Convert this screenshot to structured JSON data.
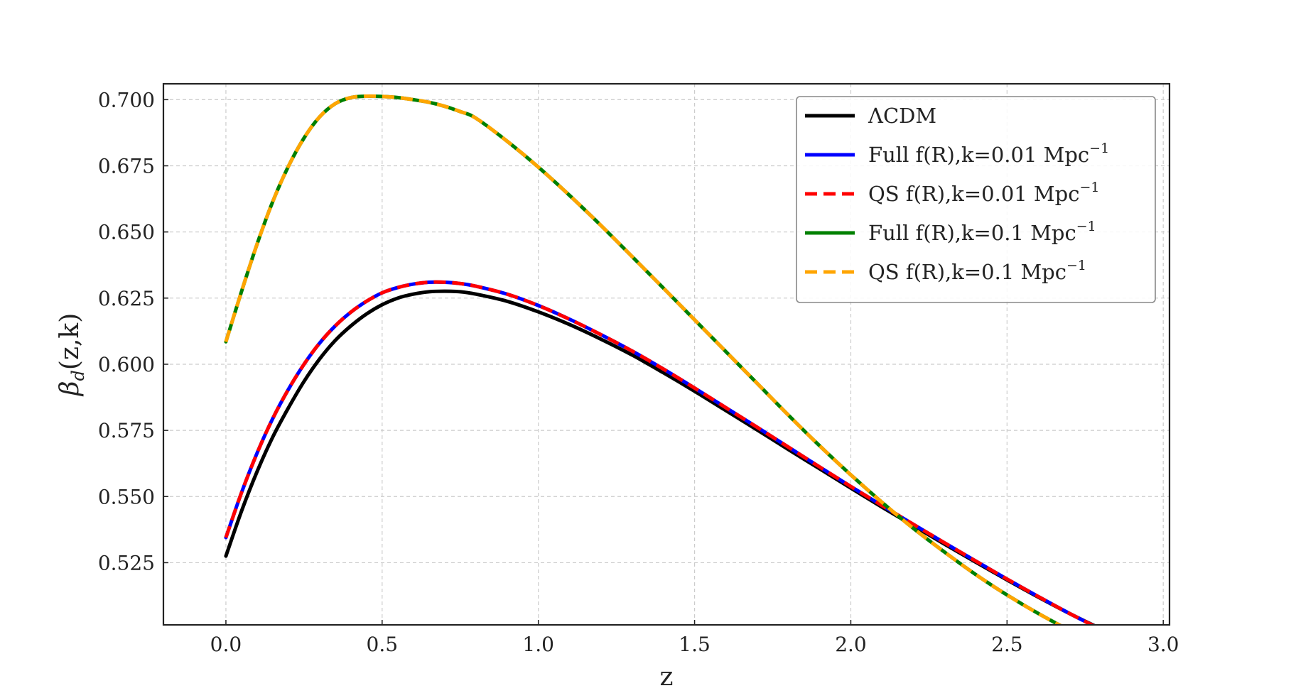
{
  "chart_data": {
    "type": "line",
    "xlabel": "z",
    "ylabel_symbol": "β",
    "ylabel_subscript": "d",
    "ylabel_rest": "(z,k)",
    "xlim": [
      -0.2,
      3.02
    ],
    "ylim": [
      0.5015,
      0.706
    ],
    "x_ticks": [
      0.0,
      0.5,
      1.0,
      1.5,
      2.0,
      2.5,
      3.0
    ],
    "x_tick_labels": [
      "0.0",
      "0.5",
      "1.0",
      "1.5",
      "2.0",
      "2.5",
      "3.0"
    ],
    "y_ticks": [
      0.525,
      0.55,
      0.575,
      0.6,
      0.625,
      0.65,
      0.675,
      0.7
    ],
    "y_tick_labels": [
      "0.525",
      "0.550",
      "0.575",
      "0.600",
      "0.625",
      "0.650",
      "0.675",
      "0.700"
    ],
    "grid": true,
    "legend_position": "top-right",
    "series": [
      {
        "name": "ΛCDM",
        "legend_base": "ΛCDM",
        "legend_sup": "",
        "color": "#000000",
        "dash": "solid",
        "x": [
          0.0,
          0.05,
          0.1,
          0.15,
          0.2,
          0.25,
          0.3,
          0.35,
          0.4,
          0.45,
          0.5,
          0.55,
          0.6,
          0.65,
          0.7,
          0.75,
          0.8,
          0.9,
          1.0,
          1.1,
          1.2,
          1.3,
          1.4,
          1.5,
          1.6,
          1.7,
          1.8,
          1.9,
          2.0,
          2.1,
          2.2,
          2.3,
          2.4,
          2.5,
          2.6,
          2.7,
          2.8,
          2.85
        ],
        "y": [
          0.5275,
          0.5445,
          0.5595,
          0.5725,
          0.5835,
          0.5935,
          0.602,
          0.609,
          0.6145,
          0.619,
          0.6225,
          0.625,
          0.6265,
          0.6274,
          0.6276,
          0.6274,
          0.6265,
          0.6238,
          0.6198,
          0.615,
          0.6095,
          0.6035,
          0.5968,
          0.5898,
          0.5825,
          0.5752,
          0.5678,
          0.5605,
          0.5532,
          0.546,
          0.539,
          0.532,
          0.5252,
          0.5185,
          0.512,
          0.5058,
          0.5,
          0.497
        ]
      },
      {
        "name": "Full f(R),k=0.01 Mpc⁻¹",
        "legend_base": "Full f(R),k=0.01 Mpc",
        "legend_sup": "−1",
        "color": "#0000ff",
        "dash": "solid",
        "x": [
          0.0,
          0.05,
          0.1,
          0.15,
          0.2,
          0.25,
          0.3,
          0.35,
          0.4,
          0.45,
          0.5,
          0.55,
          0.6,
          0.65,
          0.7,
          0.75,
          0.8,
          0.9,
          1.0,
          1.1,
          1.2,
          1.3,
          1.4,
          1.5,
          1.6,
          1.7,
          1.8,
          1.9,
          2.0,
          2.1,
          2.2,
          2.3,
          2.4,
          2.5,
          2.6,
          2.7,
          2.8,
          2.85
        ],
        "y": [
          0.5345,
          0.5515,
          0.5665,
          0.5795,
          0.5905,
          0.6,
          0.608,
          0.6145,
          0.6197,
          0.6238,
          0.627,
          0.629,
          0.6303,
          0.631,
          0.631,
          0.6305,
          0.6295,
          0.6265,
          0.6222,
          0.617,
          0.6112,
          0.605,
          0.5982,
          0.591,
          0.5836,
          0.5762,
          0.5687,
          0.5612,
          0.5538,
          0.5466,
          0.5395,
          0.5325,
          0.5256,
          0.5188,
          0.5122,
          0.5058,
          0.4998,
          0.4968
        ]
      },
      {
        "name": "QS f(R),k=0.01 Mpc⁻¹",
        "legend_base": "QS f(R),k=0.01 Mpc",
        "legend_sup": "−1",
        "color": "#ff0000",
        "dash": "dashed",
        "x": [
          0.0,
          0.05,
          0.1,
          0.15,
          0.2,
          0.25,
          0.3,
          0.35,
          0.4,
          0.45,
          0.5,
          0.55,
          0.6,
          0.65,
          0.7,
          0.75,
          0.8,
          0.9,
          1.0,
          1.1,
          1.2,
          1.3,
          1.4,
          1.5,
          1.6,
          1.7,
          1.8,
          1.9,
          2.0,
          2.1,
          2.2,
          2.3,
          2.4,
          2.5,
          2.6,
          2.7,
          2.8,
          2.85
        ],
        "y": [
          0.5345,
          0.5515,
          0.5665,
          0.5795,
          0.5905,
          0.6,
          0.608,
          0.6145,
          0.6197,
          0.6238,
          0.627,
          0.629,
          0.6303,
          0.631,
          0.631,
          0.6305,
          0.6295,
          0.6265,
          0.6222,
          0.617,
          0.6112,
          0.605,
          0.5982,
          0.591,
          0.5836,
          0.5762,
          0.5687,
          0.5612,
          0.5538,
          0.5466,
          0.5395,
          0.5325,
          0.5256,
          0.5188,
          0.5122,
          0.5058,
          0.4998,
          0.4968
        ]
      },
      {
        "name": "Full f(R),k=0.1 Mpc⁻¹",
        "legend_base": "Full f(R),k=0.1 Mpc",
        "legend_sup": "−1",
        "color": "#008000",
        "dash": "solid",
        "x": [
          0.0,
          0.05,
          0.1,
          0.15,
          0.2,
          0.25,
          0.3,
          0.35,
          0.4,
          0.45,
          0.5,
          0.55,
          0.6,
          0.65,
          0.7,
          0.75,
          0.8,
          0.9,
          1.0,
          1.1,
          1.2,
          1.3,
          1.4,
          1.5,
          1.6,
          1.7,
          1.8,
          1.9,
          2.0,
          2.1,
          2.2,
          2.3,
          2.4,
          2.5,
          2.6,
          2.7,
          2.8,
          2.9
        ],
        "y": [
          0.6085,
          0.6275,
          0.6455,
          0.6615,
          0.6748,
          0.6855,
          0.6935,
          0.6985,
          0.7008,
          0.7013,
          0.7012,
          0.7008,
          0.7,
          0.699,
          0.6975,
          0.6955,
          0.693,
          0.6843,
          0.6745,
          0.6638,
          0.6525,
          0.6407,
          0.6288,
          0.6168,
          0.6048,
          0.5928,
          0.5808,
          0.5692,
          0.5582,
          0.5478,
          0.538,
          0.529,
          0.5205,
          0.5128,
          0.5058,
          0.4995,
          0.494,
          0.489
        ]
      },
      {
        "name": "QS f(R),k=0.1 Mpc⁻¹",
        "legend_base": "QS f(R),k=0.1 Mpc",
        "legend_sup": "−1",
        "color": "#ffa500",
        "dash": "dashed",
        "x": [
          0.0,
          0.05,
          0.1,
          0.15,
          0.2,
          0.25,
          0.3,
          0.35,
          0.4,
          0.45,
          0.5,
          0.55,
          0.6,
          0.65,
          0.7,
          0.75,
          0.8,
          0.9,
          1.0,
          1.1,
          1.2,
          1.3,
          1.4,
          1.5,
          1.6,
          1.7,
          1.8,
          1.9,
          2.0,
          2.1,
          2.2,
          2.3,
          2.4,
          2.5,
          2.6,
          2.7,
          2.8,
          2.9
        ],
        "y": [
          0.6085,
          0.6275,
          0.6455,
          0.6615,
          0.6748,
          0.6855,
          0.6935,
          0.6985,
          0.7008,
          0.7013,
          0.7012,
          0.7008,
          0.7,
          0.699,
          0.6975,
          0.6955,
          0.693,
          0.6843,
          0.6745,
          0.6638,
          0.6525,
          0.6407,
          0.6288,
          0.6168,
          0.6048,
          0.5928,
          0.5808,
          0.5692,
          0.5582,
          0.5478,
          0.538,
          0.529,
          0.5205,
          0.5128,
          0.5058,
          0.4995,
          0.494,
          0.489
        ]
      }
    ]
  }
}
